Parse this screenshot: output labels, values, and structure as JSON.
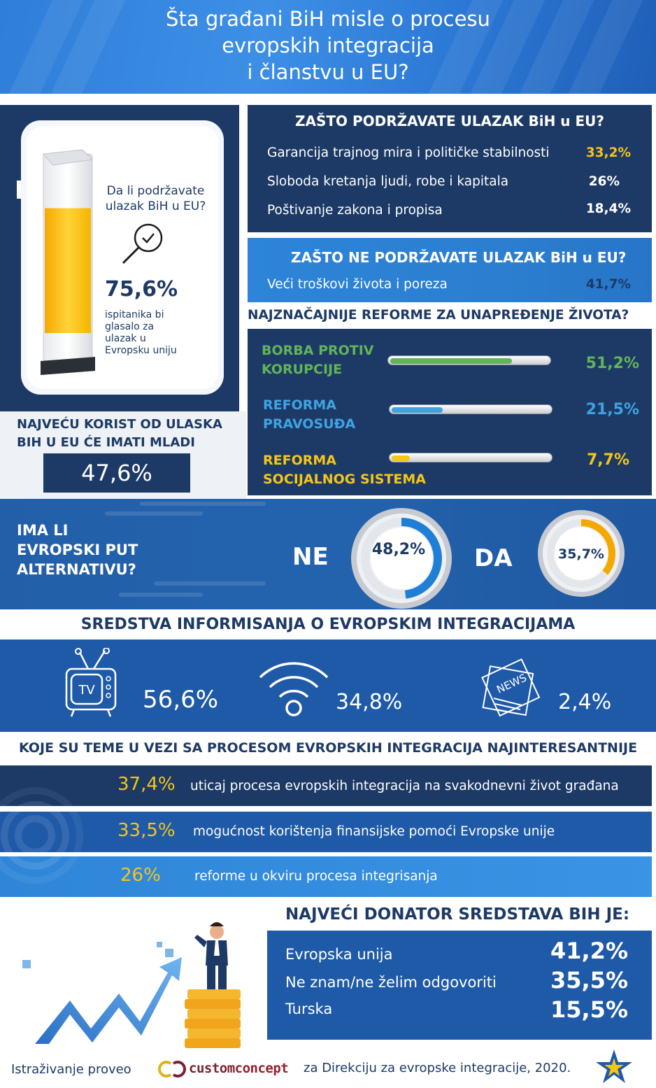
{
  "header": {
    "title_l1": "Šta građani BiH misle o procesu",
    "title_l2": "evropskih integracija",
    "title_l3": "i članstvu u EU?"
  },
  "support": {
    "question_l1": "Da li podržavate",
    "question_l2": "ulazak BiH u EU?",
    "value": "75,6%",
    "fill_fraction": 0.756,
    "sub_l1": "ispitanika bi",
    "sub_l2": "glasalo za",
    "sub_l3": "ulazak u",
    "sub_l4": "Evropsku uniju"
  },
  "youth": {
    "title_l1": "NAJVEĆU KORIST OD ULASKA",
    "title_l2": "BIH U EU ĆE IMATI MLADI",
    "value": "47,6%"
  },
  "why_yes": {
    "title": "ZAŠTO PODRŽAVATE ULAZAK BiH u EU?",
    "rows": [
      {
        "label": "Garancija trajnog mira i političke stabilnosti",
        "value": "33,2%"
      },
      {
        "label": "Sloboda kretanja ljudi, robe i kapitala",
        "value": "26%"
      },
      {
        "label": "Poštivanje zakona i propisa",
        "value": "18,4%"
      }
    ]
  },
  "why_no": {
    "title": "ZAŠTO NE PODRŽAVATE ULAZAK BiH u EU?",
    "rows": [
      {
        "label": "Veći troškovi života i poreza",
        "value": "41,7%"
      }
    ]
  },
  "reforms": {
    "title": "NAJZNAČAJNIJE REFORME ZA UNAPREĐENJE ŽIVOTA?",
    "items": [
      {
        "label_l1": "BORBA PROTIV",
        "label_l2": "KORUPCIJE",
        "value": "51,2%",
        "fraction": 0.512,
        "color": "#62b45a"
      },
      {
        "label_l1": "REFORMA",
        "label_l2": "PRAVOSUĐA",
        "value": "21,5%",
        "fraction": 0.215,
        "color": "#3fa3e2"
      },
      {
        "label_l1": "REFORMA",
        "label_l2": "SOCIJALNOG SISTEMA",
        "value": "7,7%",
        "fraction": 0.077,
        "color": "#f5c518"
      }
    ]
  },
  "alternative": {
    "title_l1": "IMA LI",
    "title_l2": "EVROPSKI PUT",
    "title_l3": "ALTERNATIVU?",
    "no_label": "NE",
    "no_value": "48,2%",
    "no_fraction": 0.482,
    "yes_label": "DA",
    "yes_value": "35,7%",
    "yes_fraction": 0.357
  },
  "media": {
    "title": "SREDSTVA INFORMISANJA O  EVROPSKIM INTEGRACIJAMA",
    "items": [
      {
        "icon": "tv-icon",
        "icon_text": "TV",
        "value": "56,6%"
      },
      {
        "icon": "wifi-icon",
        "value": "34,8%"
      },
      {
        "icon": "newspaper-icon",
        "icon_text": "NEWS",
        "value": "2,4%"
      }
    ]
  },
  "topics": {
    "title": "KOJE SU TEME U VEZI SA PROCESOM EVROPSKIH INTEGRACIJA NAJINTERESANTNIJE",
    "items": [
      {
        "value": "37,4%",
        "text": "uticaj procesa evropskih integracija na svakodnevni život građana"
      },
      {
        "value": "33,5%",
        "text": "mogućnost korištenja finansijske pomoći Evropske unije"
      },
      {
        "value": "26%",
        "text": "reforme u okviru procesa integrisanja"
      }
    ]
  },
  "donor": {
    "title": "NAJVEĆI DONATOR SREDSTAVA BIH JE:",
    "rows": [
      {
        "label": "Evropska unija",
        "value": "41,2%"
      },
      {
        "label": "Ne znam/ne želim odgovoriti",
        "value": "35,5%"
      },
      {
        "label": "Turska",
        "value": "15,5%"
      }
    ]
  },
  "footer": {
    "left": "Istraživanje proveo",
    "logo_part1": "custom",
    "logo_part2": "concept",
    "right": "za Direkciju za evropske integracije, 2020."
  },
  "colors": {
    "navy": "#1d3a66",
    "blue": "#1f5aa8",
    "yellow": "#f5c518",
    "green": "#62b45a",
    "light_blue": "#3fa3e2"
  }
}
